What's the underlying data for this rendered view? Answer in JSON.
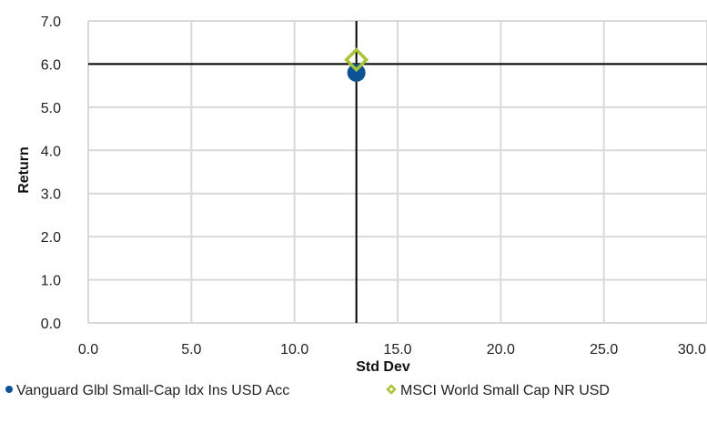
{
  "chart_data": {
    "type": "scatter",
    "xlabel": "Std Dev",
    "ylabel": "Return",
    "xlim": [
      0,
      30
    ],
    "ylim": [
      0,
      7
    ],
    "x_ticks": [
      "0.0",
      "5.0",
      "10.0",
      "15.0",
      "20.0",
      "25.0",
      "30.0"
    ],
    "y_ticks": [
      "0.0",
      "1.0",
      "2.0",
      "3.0",
      "4.0",
      "5.0",
      "6.0",
      "7.0"
    ],
    "grid": true,
    "legend_position": "bottom",
    "reference_lines": {
      "x": 13.0,
      "y": 6.0
    },
    "series": [
      {
        "name": "Vanguard Glbl Small-Cap Idx Ins USD Acc",
        "x": 13.0,
        "y": 5.8,
        "color": "#0b5394",
        "marker": "circle"
      },
      {
        "name": "MSCI World Small Cap NR USD",
        "x": 13.0,
        "y": 6.1,
        "color": "#a8c43a",
        "marker": "hollow-diamond"
      }
    ]
  }
}
